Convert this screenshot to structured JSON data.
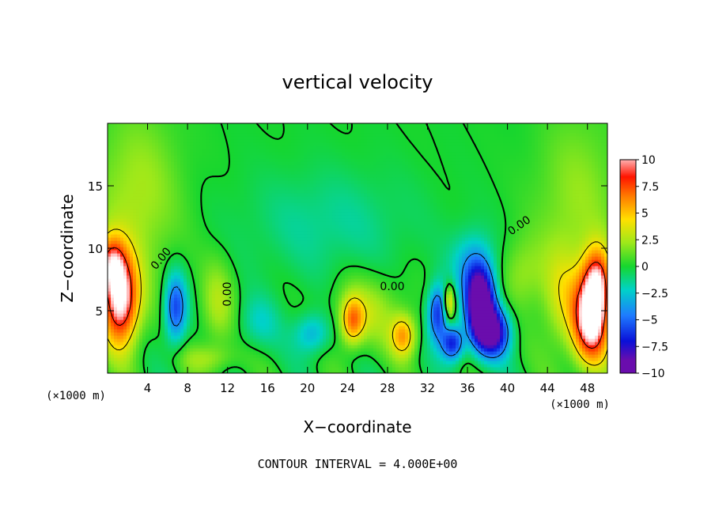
{
  "chart_data": {
    "type": "heatmap",
    "title": "vertical velocity",
    "xlabel": "X−coordinate",
    "ylabel": "Z−coordinate",
    "x_unit_left": "(×1000 m)",
    "x_unit_right": "(×1000 m)",
    "footer": "CONTOUR INTERVAL = 4.000E+00",
    "contour_label": "0.00",
    "xlim": [
      0,
      50
    ],
    "ylim": [
      0,
      20
    ],
    "x_ticks": [
      4,
      8,
      12,
      16,
      20,
      24,
      28,
      32,
      36,
      40,
      44,
      48
    ],
    "y_ticks": [
      5,
      10,
      15
    ],
    "colorbar": {
      "min": -10,
      "max": 10,
      "ticks": [
        10,
        7.5,
        5,
        2.5,
        0,
        -2.5,
        -5,
        -7.5,
        -10
      ],
      "tick_labels": [
        "10",
        "7.5",
        "5",
        "2.5",
        "0",
        "−2.5",
        "−5",
        "−7.5",
        "−10"
      ]
    },
    "features": [
      {
        "x": 1.3,
        "z": 5.8,
        "w": 10.5,
        "sx": 1.3,
        "sz": 2.6
      },
      {
        "x": 0.3,
        "z": 8.8,
        "w": 6.0,
        "sx": 1.0,
        "sz": 1.6
      },
      {
        "x": 6.8,
        "z": 5.2,
        "w": -6.0,
        "sx": 0.8,
        "sz": 2.0
      },
      {
        "x": 11.0,
        "z": 5.5,
        "w": 2.5,
        "sx": 1.2,
        "sz": 2.5
      },
      {
        "x": 10.0,
        "z": 1.2,
        "w": 2.0,
        "sx": 2.0,
        "sz": 0.8
      },
      {
        "x": 15.0,
        "z": 4.0,
        "w": -2.0,
        "sx": 1.5,
        "sz": 1.5
      },
      {
        "x": 20.5,
        "z": 3.2,
        "w": -3.5,
        "sx": 1.3,
        "sz": 1.2
      },
      {
        "x": 24.5,
        "z": 4.2,
        "w": 5.5,
        "sx": 0.8,
        "sz": 1.3
      },
      {
        "x": 29.6,
        "z": 3.0,
        "w": 5.5,
        "sx": 0.9,
        "sz": 1.2
      },
      {
        "x": 26.0,
        "z": 5.0,
        "w": 2.5,
        "sx": 2.5,
        "sz": 2.0
      },
      {
        "x": 33.0,
        "z": 4.8,
        "w": -6.5,
        "sx": 0.7,
        "sz": 1.6
      },
      {
        "x": 34.5,
        "z": 2.4,
        "w": -7.0,
        "sx": 0.8,
        "sz": 1.0
      },
      {
        "x": 34.2,
        "z": 5.7,
        "w": 5.0,
        "sx": 0.4,
        "sz": 1.0
      },
      {
        "x": 37.3,
        "z": 5.5,
        "w": -11.5,
        "sx": 1.0,
        "sz": 2.0
      },
      {
        "x": 38.6,
        "z": 3.3,
        "w": -8.5,
        "sx": 1.2,
        "sz": 1.4
      },
      {
        "x": 36.5,
        "z": 8.5,
        "w": -3.5,
        "sx": 1.5,
        "sz": 2.0
      },
      {
        "x": 48.4,
        "z": 4.2,
        "w": 10.5,
        "sx": 1.3,
        "sz": 2.5
      },
      {
        "x": 49.0,
        "z": 7.5,
        "w": 7.0,
        "sx": 1.0,
        "sz": 2.0
      },
      {
        "x": 45.5,
        "z": 6.0,
        "w": 3.0,
        "sx": 1.5,
        "sz": 3.0
      },
      {
        "x": 3.0,
        "z": 14.0,
        "w": 2.5,
        "sx": 3.0,
        "sz": 5.0
      },
      {
        "x": 47.0,
        "z": 14.0,
        "w": 2.0,
        "sx": 3.0,
        "sz": 5.0
      },
      {
        "x": 22.0,
        "z": 12.0,
        "w": -1.5,
        "sx": 6.0,
        "sz": 3.0
      },
      {
        "x": 41.5,
        "z": 8.0,
        "w": 2.0,
        "sx": 1.5,
        "sz": 2.0
      }
    ]
  }
}
